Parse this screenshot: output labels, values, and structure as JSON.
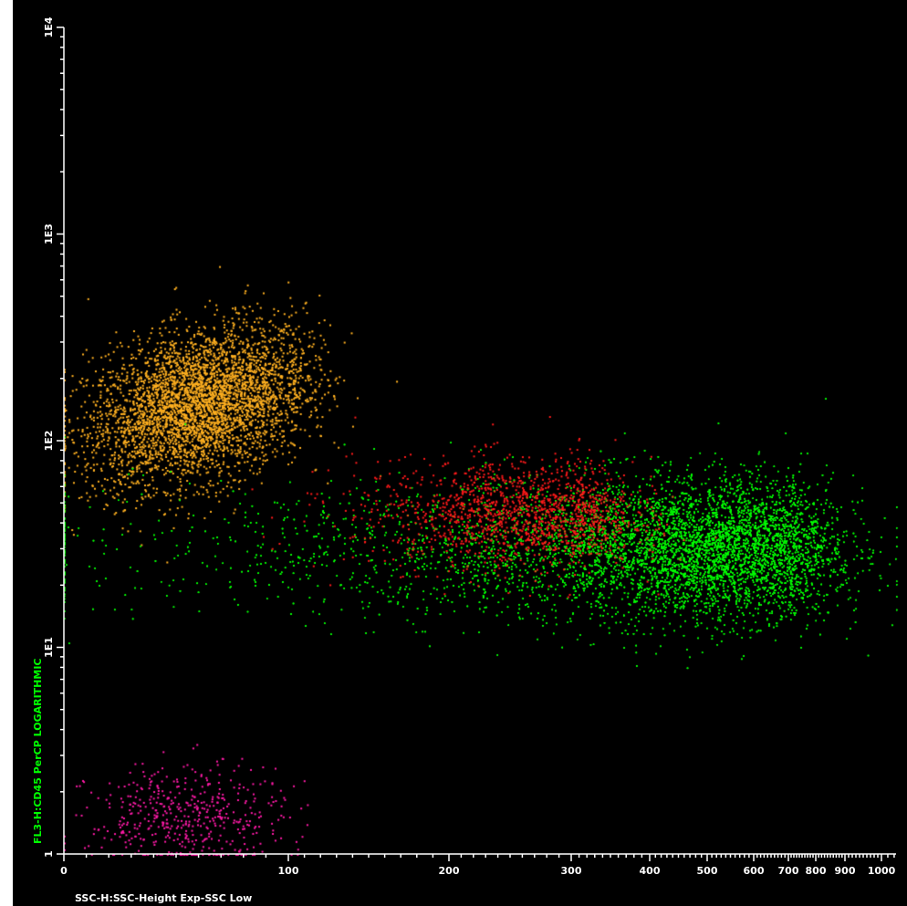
{
  "chart_data": {
    "type": "scatter",
    "title": "",
    "xlabel": "SSC-H:SSC-Height Exp-SSC Low",
    "ylabel": "FL3-H:CD45 PerCP LOGARITHMIC",
    "ylabel_color": "#00ff00",
    "background": "#000000",
    "axis_color": "#ffffff",
    "x_scale": "SSC exponential",
    "y_scale": "log",
    "xlim": [
      0,
      1023
    ],
    "ylim": [
      1,
      10000
    ],
    "x_ticks": [
      {
        "value": 0,
        "label": "0"
      },
      {
        "value": 100,
        "label": "100"
      },
      {
        "value": 200,
        "label": "200"
      },
      {
        "value": 300,
        "label": "300"
      },
      {
        "value": 400,
        "label": "400"
      },
      {
        "value": 500,
        "label": "500"
      },
      {
        "value": 600,
        "label": "600"
      },
      {
        "value": 700,
        "label": "700"
      },
      {
        "value": 800,
        "label": "800"
      },
      {
        "value": 900,
        "label": "900"
      },
      {
        "value": 1000,
        "label": "1000"
      }
    ],
    "y_ticks": [
      {
        "value": 1,
        "label": "1"
      },
      {
        "value": 10,
        "label": "1E1"
      },
      {
        "value": 100,
        "label": "1E2"
      },
      {
        "value": 1000,
        "label": "1E3"
      },
      {
        "value": 10000,
        "label": "1E4"
      }
    ],
    "grid": false,
    "legend": "none",
    "series": [
      {
        "color": "#ffb020",
        "point_count": 4000,
        "center": {
          "x": 60,
          "y": 150
        },
        "spread": {
          "x": 25,
          "y_log10": 0.18
        },
        "tilt": 0.6
      },
      {
        "color": "#00ff00",
        "point_count": 24000,
        "center": {
          "x": 450,
          "y": 30
        },
        "spread": {
          "x": 200,
          "y_log10": 0.17
        }
      },
      {
        "color": "#ff1a1a",
        "point_count": 1500,
        "center": {
          "x": 260,
          "y": 45
        },
        "spread": {
          "x": 60,
          "y_log10": 0.13
        }
      },
      {
        "color": "#ff1aa8",
        "point_count": 500,
        "center": {
          "x": 55,
          "y": 1.5
        },
        "spread": {
          "x": 22,
          "y_log10": 0.13
        }
      }
    ]
  }
}
